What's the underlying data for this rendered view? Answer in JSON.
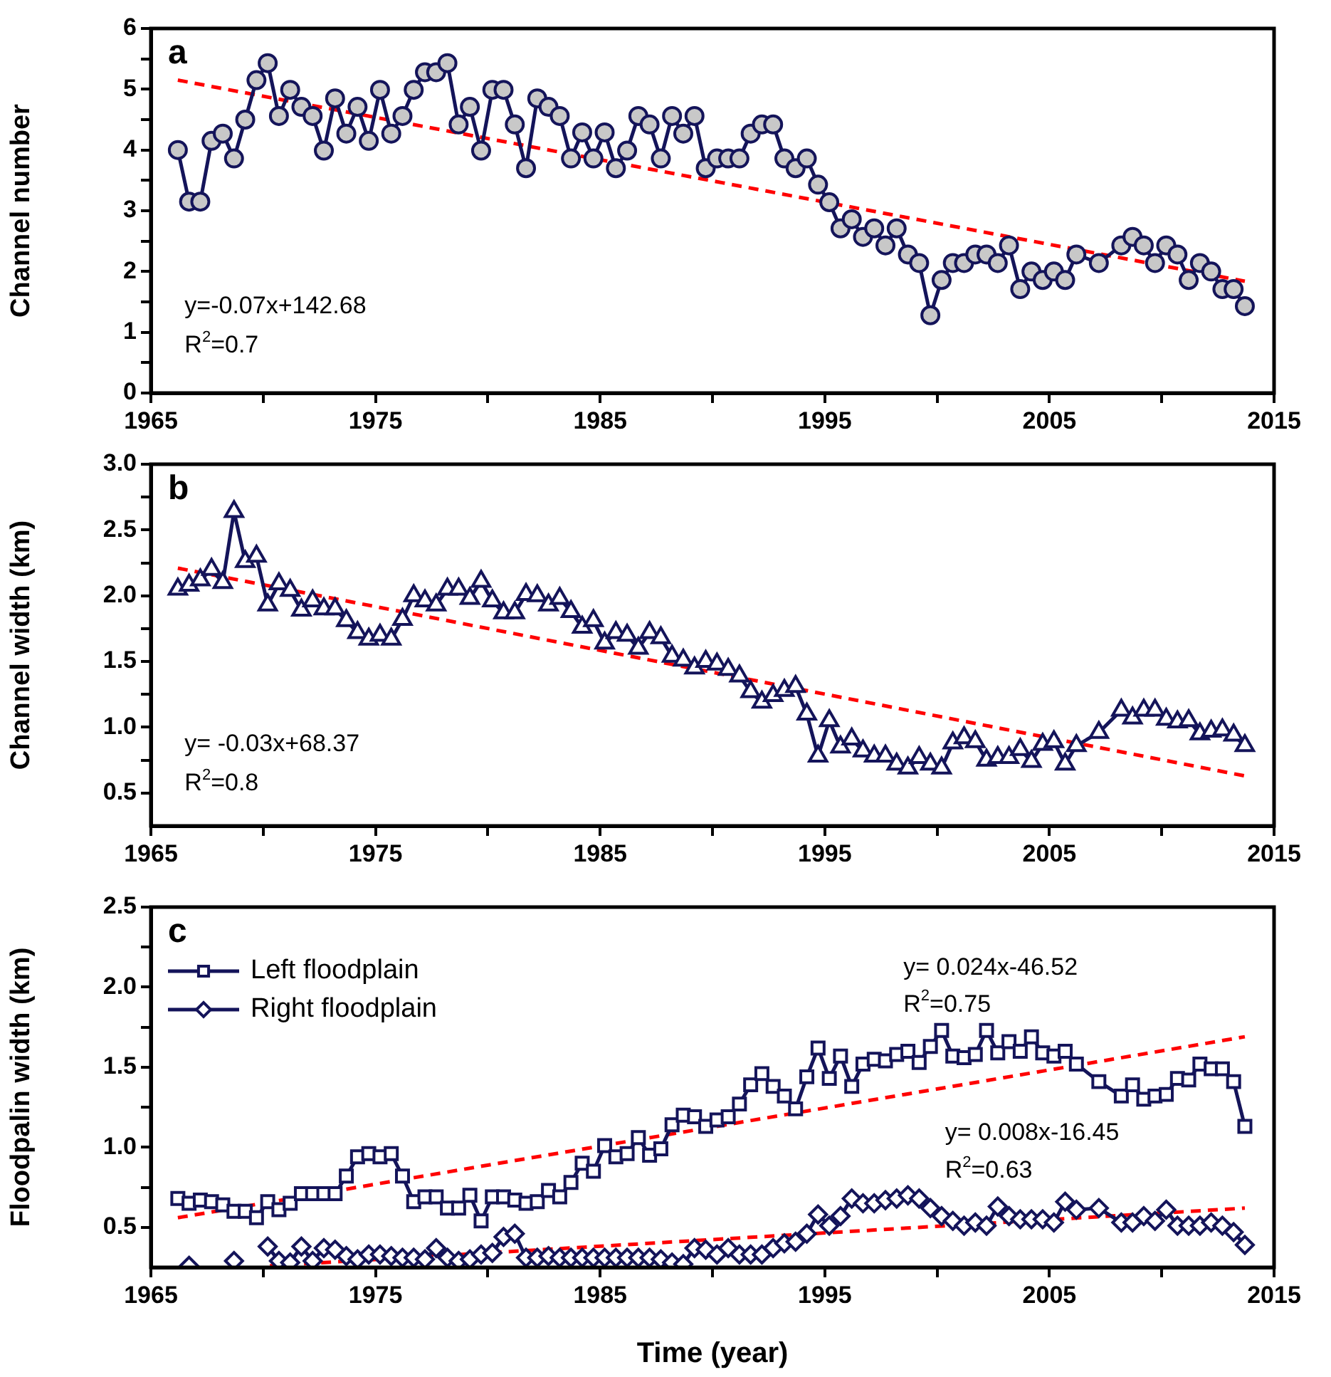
{
  "chart_data": [
    {
      "type": "line",
      "ylabel": "Channel number",
      "marker": "circle",
      "line_style": "solid",
      "grid": false,
      "legend": false,
      "annotations": [
        "a",
        "y=-0.07x+142.68",
        "R$^{2}$=0.7"
      ],
      "xlim": [
        1965,
        2015
      ],
      "xticks": [
        1965,
        {
          "value": 1970,
          "label": null
        },
        1975,
        {
          "value": 1980,
          "label": null
        },
        1985,
        {
          "value": 1990,
          "label": null
        },
        1995,
        {
          "value": 2000,
          "label": null
        },
        2005,
        {
          "value": 2010,
          "label": null
        },
        2015
      ],
      "ylim": [
        0,
        6
      ],
      "yticks": [
        0,
        {
          "value": 0.5,
          "label": null
        },
        1,
        {
          "value": 1.5,
          "label": null
        },
        2,
        {
          "value": 2.5,
          "label": null
        },
        3,
        {
          "value": 3.5,
          "label": null
        },
        4,
        {
          "value": 4.5,
          "label": null
        },
        5,
        {
          "value": 5.5,
          "label": null
        },
        6
      ],
      "x": [
        1966.2,
        1966.7,
        1967.2,
        1967.7,
        1968.2,
        1968.7,
        1969.2,
        1969.7,
        1970.2,
        1970.7,
        1971.2,
        1971.7,
        1972.2,
        1972.7,
        1973.2,
        1973.7,
        1974.2,
        1974.7,
        1975.2,
        1975.7,
        1976.2,
        1976.7,
        1977.2,
        1977.7,
        1978.2,
        1978.7,
        1979.2,
        1979.7,
        1980.2,
        1980.7,
        1981.2,
        1981.7,
        1982.2,
        1982.7,
        1983.2,
        1983.7,
        1984.2,
        1984.7,
        1985.2,
        1985.7,
        1986.2,
        1986.7,
        1987.2,
        1987.7,
        1988.2,
        1988.7,
        1989.2,
        1989.7,
        1990.2,
        1990.7,
        1991.2,
        1991.7,
        1992.2,
        1992.7,
        1993.2,
        1993.7,
        1994.2,
        1994.7,
        1995.2,
        1995.7,
        1996.2,
        1996.7,
        1997.2,
        1997.7,
        1998.2,
        1998.7,
        1999.2,
        1999.7,
        2000.2,
        2000.7,
        2001.2,
        2001.7,
        2002.2,
        2002.7,
        2003.2,
        2003.7,
        2004.2,
        2004.7,
        2005.2,
        2005.7,
        2006.2,
        2007.2,
        2008.2,
        2008.7,
        2009.2,
        2009.7,
        2010.2,
        2010.7,
        2011.2,
        2011.7,
        2012.2,
        2012.7,
        2013.2,
        2013.7
      ],
      "series": [
        {
          "color": "#14145a",
          "values": [
            4.0,
            3.15,
            3.15,
            4.15,
            4.27,
            3.86,
            4.5,
            5.15,
            5.43,
            4.56,
            4.99,
            4.71,
            4.56,
            3.99,
            4.85,
            4.27,
            4.71,
            4.15,
            4.99,
            4.27,
            4.56,
            4.99,
            5.28,
            5.28,
            5.43,
            4.42,
            4.71,
            3.99,
            4.99,
            4.99,
            4.42,
            3.7,
            4.85,
            4.71,
            4.56,
            3.86,
            4.29,
            3.86,
            4.29,
            3.7,
            3.99,
            4.56,
            4.42,
            3.86,
            4.56,
            4.27,
            4.56,
            3.7,
            3.86,
            3.86,
            3.86,
            4.27,
            4.42,
            4.42,
            3.86,
            3.7,
            3.86,
            3.43,
            3.14,
            2.71,
            2.86,
            2.57,
            2.71,
            2.43,
            2.71,
            2.28,
            2.14,
            1.28,
            1.86,
            2.14,
            2.14,
            2.28,
            2.28,
            2.14,
            2.43,
            1.71,
            2.0,
            1.86,
            2.0,
            1.86,
            2.28,
            2.14,
            2.43,
            2.57,
            2.43,
            2.14,
            2.43,
            2.28,
            1.86,
            2.14,
            2.0,
            1.71,
            1.71,
            1.43
          ]
        },
        {
          "type": "line",
          "color": "#ff0000",
          "line_style": "dashed",
          "marker": "none",
          "x": [
            1966.2,
            2013.7
          ],
          "values": [
            5.15,
            1.84
          ]
        }
      ]
    },
    {
      "type": "line",
      "ylabel": "Channel width (km)",
      "marker": "triangle",
      "line_style": "solid",
      "grid": false,
      "legend": false,
      "annotations": [
        "b",
        "y= -0.03x+68.37",
        "R$^{2}$=0.8"
      ],
      "xlim": [
        1965,
        2015
      ],
      "xticks": [
        1965,
        {
          "value": 1970,
          "label": null
        },
        1975,
        {
          "value": 1980,
          "label": null
        },
        1985,
        {
          "value": 1990,
          "label": null
        },
        1995,
        {
          "value": 2000,
          "label": null
        },
        2005,
        {
          "value": 2010,
          "label": null
        },
        2015
      ],
      "ylim": [
        0.25,
        3.0
      ],
      "yticks": [
        0.5,
        {
          "value": 0.75,
          "label": null
        },
        {
          "value": 1,
          "label": "1.0"
        },
        {
          "value": 1.25,
          "label": null
        },
        1.5,
        {
          "value": 1.75,
          "label": null
        },
        {
          "value": 2,
          "label": "2.0"
        },
        {
          "value": 2.25,
          "label": null
        },
        2.5,
        {
          "value": 2.75,
          "label": null
        },
        {
          "value": 3,
          "label": "3.0"
        }
      ],
      "x": [
        1966.2,
        1966.7,
        1967.2,
        1967.7,
        1968.2,
        1968.7,
        1969.2,
        1969.7,
        1970.2,
        1970.7,
        1971.2,
        1971.7,
        1972.2,
        1972.7,
        1973.2,
        1973.7,
        1974.2,
        1974.7,
        1975.2,
        1975.7,
        1976.2,
        1976.7,
        1977.2,
        1977.7,
        1978.2,
        1978.7,
        1979.2,
        1979.7,
        1980.2,
        1980.7,
        1981.2,
        1981.7,
        1982.2,
        1982.7,
        1983.2,
        1983.7,
        1984.2,
        1984.7,
        1985.2,
        1985.7,
        1986.2,
        1986.7,
        1987.2,
        1987.7,
        1988.2,
        1988.7,
        1989.2,
        1989.7,
        1990.2,
        1990.7,
        1991.2,
        1991.7,
        1992.2,
        1992.7,
        1993.2,
        1993.7,
        1994.2,
        1994.7,
        1995.2,
        1995.7,
        1996.2,
        1996.7,
        1997.2,
        1997.7,
        1998.2,
        1998.7,
        1999.2,
        1999.7,
        2000.2,
        2000.7,
        2001.2,
        2001.7,
        2002.2,
        2002.7,
        2003.2,
        2003.7,
        2004.2,
        2004.7,
        2005.2,
        2005.7,
        2006.2,
        2007.2,
        2008.2,
        2008.7,
        2009.2,
        2009.7,
        2010.2,
        2010.7,
        2011.2,
        2011.7,
        2012.2,
        2012.7,
        2013.2,
        2013.7
      ],
      "series": [
        {
          "color": "#14145a",
          "values": [
            2.05,
            2.08,
            2.12,
            2.2,
            2.1,
            2.64,
            2.26,
            2.3,
            1.93,
            2.09,
            2.04,
            1.89,
            1.96,
            1.9,
            1.9,
            1.81,
            1.72,
            1.67,
            1.7,
            1.67,
            1.82,
            2.0,
            1.96,
            1.93,
            2.05,
            2.05,
            1.98,
            2.11,
            1.96,
            1.87,
            1.87,
            2.01,
            2.0,
            1.93,
            1.98,
            1.88,
            1.76,
            1.81,
            1.64,
            1.72,
            1.7,
            1.6,
            1.72,
            1.68,
            1.54,
            1.51,
            1.45,
            1.5,
            1.48,
            1.44,
            1.39,
            1.27,
            1.19,
            1.24,
            1.28,
            1.31,
            1.1,
            0.78,
            1.05,
            0.85,
            0.91,
            0.82,
            0.78,
            0.78,
            0.72,
            0.69,
            0.77,
            0.72,
            0.69,
            0.88,
            0.92,
            0.89,
            0.75,
            0.77,
            0.77,
            0.83,
            0.74,
            0.87,
            0.89,
            0.72,
            0.86,
            0.96,
            1.13,
            1.07,
            1.13,
            1.13,
            1.06,
            1.04,
            1.05,
            0.95,
            0.97,
            0.98,
            0.94,
            0.86
          ]
        },
        {
          "type": "line",
          "color": "#ff0000",
          "line_style": "dashed",
          "marker": "none",
          "x": [
            1966.2,
            2013.7
          ],
          "values": [
            2.21,
            0.63
          ]
        }
      ]
    },
    {
      "type": "line",
      "xlabel": "Time (year)",
      "ylabel": "Floodpalin width (km)",
      "line_style": "solid",
      "grid": false,
      "legend": "top left",
      "annotations": [
        "c",
        "y= 0.024x-46.52",
        "R$^{2}$=0.75",
        "y= 0.008x-16.45",
        "R$^{2}$=0.63"
      ],
      "xlim": [
        1965,
        2015
      ],
      "xticks": [
        1965,
        {
          "value": 1970,
          "label": null
        },
        1975,
        {
          "value": 1980,
          "label": null
        },
        1985,
        {
          "value": 1990,
          "label": null
        },
        1995,
        {
          "value": 2000,
          "label": null
        },
        2005,
        {
          "value": 2010,
          "label": null
        },
        2015
      ],
      "ylim": [
        0.25,
        2.5
      ],
      "yticks": [
        0.5,
        {
          "value": 0.75,
          "label": null
        },
        {
          "value": 1,
          "label": "1.0"
        },
        {
          "value": 1.25,
          "label": null
        },
        1.5,
        {
          "value": 1.75,
          "label": null
        },
        {
          "value": 2,
          "label": "2.0"
        },
        {
          "value": 2.25,
          "label": null
        },
        2.5
      ],
      "x": [
        1966.2,
        1966.7,
        1967.2,
        1967.7,
        1968.2,
        1968.7,
        1969.2,
        1969.7,
        1970.2,
        1970.7,
        1971.2,
        1971.7,
        1972.2,
        1972.7,
        1973.2,
        1973.7,
        1974.2,
        1974.7,
        1975.2,
        1975.7,
        1976.2,
        1976.7,
        1977.2,
        1977.7,
        1978.2,
        1978.7,
        1979.2,
        1979.7,
        1980.2,
        1980.7,
        1981.2,
        1981.7,
        1982.2,
        1982.7,
        1983.2,
        1983.7,
        1984.2,
        1984.7,
        1985.2,
        1985.7,
        1986.2,
        1986.7,
        1987.2,
        1987.7,
        1988.2,
        1988.7,
        1989.2,
        1989.7,
        1990.2,
        1990.7,
        1991.2,
        1991.7,
        1992.2,
        1992.7,
        1993.2,
        1993.7,
        1994.2,
        1994.7,
        1995.2,
        1995.7,
        1996.2,
        1996.7,
        1997.2,
        1997.7,
        1998.2,
        1998.7,
        1999.2,
        1999.7,
        2000.2,
        2000.7,
        2001.2,
        2001.7,
        2002.2,
        2002.7,
        2003.2,
        2003.7,
        2004.2,
        2004.7,
        2005.2,
        2005.7,
        2006.2,
        2007.2,
        2008.2,
        2008.7,
        2009.2,
        2009.7,
        2010.2,
        2010.7,
        2011.2,
        2011.7,
        2012.2,
        2012.7,
        2013.2,
        2013.7
      ],
      "series": [
        {
          "name": "Left floodplain",
          "marker": "square",
          "color": "#14145a",
          "values": [
            0.68,
            0.65,
            0.67,
            0.66,
            0.64,
            0.6,
            0.6,
            0.56,
            0.66,
            0.61,
            0.65,
            0.71,
            0.71,
            0.71,
            0.71,
            0.82,
            0.94,
            0.96,
            0.94,
            0.96,
            0.82,
            0.66,
            0.69,
            0.69,
            0.62,
            0.62,
            0.7,
            0.54,
            0.69,
            0.69,
            0.67,
            0.65,
            0.66,
            0.73,
            0.69,
            0.78,
            0.9,
            0.85,
            1.01,
            0.94,
            0.96,
            1.06,
            0.95,
            0.99,
            1.14,
            1.2,
            1.19,
            1.13,
            1.17,
            1.19,
            1.27,
            1.39,
            1.46,
            1.38,
            1.32,
            1.24,
            1.44,
            1.62,
            1.43,
            1.57,
            1.38,
            1.52,
            1.55,
            1.54,
            1.58,
            1.6,
            1.53,
            1.63,
            1.73,
            1.57,
            1.56,
            1.58,
            1.73,
            1.59,
            1.66,
            1.6,
            1.69,
            1.59,
            1.57,
            1.6,
            1.52,
            1.41,
            1.32,
            1.39,
            1.3,
            1.32,
            1.33,
            1.43,
            1.42,
            1.52,
            1.49,
            1.49,
            1.41,
            1.13
          ]
        },
        {
          "name": "Right floodplain",
          "marker": "diamond",
          "color": "#14145a",
          "values": [
            null,
            0.26,
            null,
            null,
            null,
            0.29,
            null,
            null,
            0.38,
            0.29,
            0.28,
            0.38,
            0.29,
            0.37,
            0.36,
            0.32,
            0.3,
            0.33,
            0.33,
            0.32,
            0.31,
            0.31,
            0.3,
            0.37,
            0.31,
            0.29,
            0.3,
            0.33,
            0.34,
            0.44,
            0.46,
            0.31,
            0.31,
            0.32,
            0.31,
            0.31,
            0.31,
            0.31,
            0.31,
            0.31,
            0.31,
            0.31,
            0.31,
            0.3,
            0.28,
            0.27,
            0.37,
            0.36,
            0.33,
            0.37,
            0.33,
            0.33,
            0.33,
            0.37,
            0.4,
            0.41,
            0.46,
            0.58,
            0.51,
            0.57,
            0.68,
            0.65,
            0.65,
            0.67,
            0.68,
            0.7,
            0.68,
            0.62,
            0.57,
            0.54,
            0.51,
            0.53,
            0.51,
            0.63,
            0.57,
            0.55,
            0.55,
            0.55,
            0.53,
            0.66,
            0.61,
            0.62,
            0.53,
            0.53,
            0.57,
            0.54,
            0.61,
            0.51,
            0.51,
            0.51,
            0.53,
            0.51,
            0.47,
            0.39
          ]
        },
        {
          "type": "line",
          "color": "#ff0000",
          "line_style": "dashed",
          "marker": "none",
          "x": [
            1966.2,
            2013.7
          ],
          "values": [
            0.56,
            1.69
          ]
        },
        {
          "type": "line",
          "color": "#ff0000",
          "line_style": "dashed",
          "marker": "none",
          "x": [
            1970.3,
            2013.7
          ],
          "values": [
            0.26,
            0.62
          ]
        }
      ]
    }
  ]
}
